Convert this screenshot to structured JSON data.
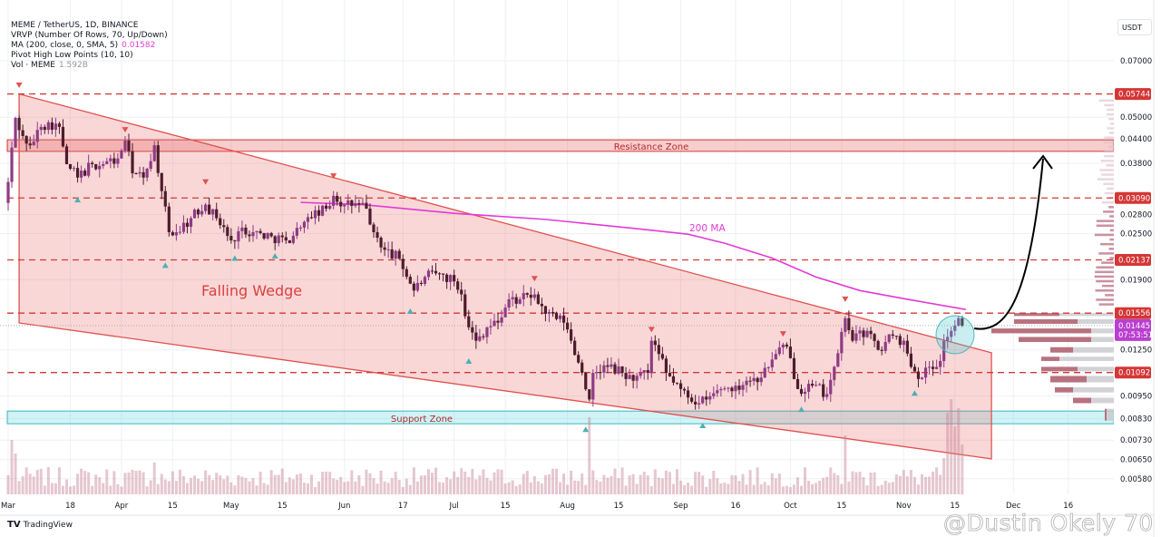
{
  "legend": {
    "symbol": "MEME / TetherUS, 1D, BINANCE",
    "vrvp": "VRVP (Number Of Rows, 70, Up/Down)",
    "ma": "MA (200, close, 0, SMA, 5)",
    "ma_value": "0.01582",
    "pivot": "Pivot High Low Points (10, 10)",
    "vol": "Vol · MEME",
    "vol_value": "1.592B"
  },
  "axis": {
    "currency": "USDT"
  },
  "footer": {
    "brand": "TradingView",
    "watermark": "@Dustin Okely 70"
  },
  "colors": {
    "up": "#8e3b84",
    "down": "#4d1c2c",
    "wedge": "#e0524f",
    "ma": "#e23ad6",
    "level": "#d23a3a",
    "support": "#3fb8bd",
    "current": "#b93fd0"
  },
  "chart_data": {
    "type": "candlestick",
    "title": "MEME / TetherUS, 1D, BINANCE",
    "scale": "log",
    "ylim": [
      0.0055,
      0.075
    ],
    "x_unit": "days since Mar 1",
    "x_ticks": [
      {
        "label": "Mar",
        "day": 0
      },
      {
        "label": "18",
        "day": 17
      },
      {
        "label": "Apr",
        "day": 31
      },
      {
        "label": "15",
        "day": 45
      },
      {
        "label": "May",
        "day": 61
      },
      {
        "label": "15",
        "day": 75
      },
      {
        "label": "Jun",
        "day": 92
      },
      {
        "label": "17",
        "day": 108
      },
      {
        "label": "Jul",
        "day": 122
      },
      {
        "label": "15",
        "day": 136
      },
      {
        "label": "Aug",
        "day": 153
      },
      {
        "label": "15",
        "day": 167
      },
      {
        "label": "Sep",
        "day": 184
      },
      {
        "label": "16",
        "day": 199
      },
      {
        "label": "Oct",
        "day": 214
      },
      {
        "label": "15",
        "day": 228
      },
      {
        "label": "Nov",
        "day": 245
      },
      {
        "label": "15",
        "day": 259
      },
      {
        "label": "Dec",
        "day": 275
      },
      {
        "label": "16",
        "day": 290
      }
    ],
    "y_ticks": [
      "0.07000",
      "0.05000",
      "0.04400",
      "0.03800",
      "0.02800",
      "0.02500",
      "0.01900",
      "0.01250",
      "0.00950",
      "0.00830",
      "0.00730",
      "0.00650",
      "0.00580"
    ],
    "close_path": [
      [
        0,
        0.034
      ],
      [
        2,
        0.0498
      ],
      [
        4,
        0.0447
      ],
      [
        6,
        0.0423
      ],
      [
        9,
        0.0472
      ],
      [
        11,
        0.0485
      ],
      [
        14,
        0.0472
      ],
      [
        16,
        0.0378
      ],
      [
        19,
        0.0349
      ],
      [
        23,
        0.0378
      ],
      [
        26,
        0.0378
      ],
      [
        30,
        0.0391
      ],
      [
        32,
        0.0435
      ],
      [
        34,
        0.0358
      ],
      [
        37,
        0.0349
      ],
      [
        40,
        0.0423
      ],
      [
        42,
        0.0322
      ],
      [
        44,
        0.0252
      ],
      [
        46,
        0.0252
      ],
      [
        50,
        0.0274
      ],
      [
        54,
        0.0297
      ],
      [
        57,
        0.0274
      ],
      [
        61,
        0.024
      ],
      [
        64,
        0.0259
      ],
      [
        67,
        0.0252
      ],
      [
        72,
        0.0246
      ],
      [
        76,
        0.024
      ],
      [
        80,
        0.0259
      ],
      [
        83,
        0.0274
      ],
      [
        87,
        0.029
      ],
      [
        89,
        0.0313
      ],
      [
        92,
        0.0297
      ],
      [
        96,
        0.0297
      ],
      [
        98,
        0.029
      ],
      [
        100,
        0.0252
      ],
      [
        103,
        0.0227
      ],
      [
        107,
        0.0215
      ],
      [
        111,
        0.0178
      ],
      [
        114,
        0.0193
      ],
      [
        118,
        0.0197
      ],
      [
        122,
        0.0188
      ],
      [
        124,
        0.0174
      ],
      [
        126,
        0.0143
      ],
      [
        128,
        0.0132
      ],
      [
        131,
        0.0143
      ],
      [
        134,
        0.0147
      ],
      [
        137,
        0.0169
      ],
      [
        140,
        0.0169
      ],
      [
        144,
        0.0174
      ],
      [
        147,
        0.0155
      ],
      [
        152,
        0.0147
      ],
      [
        154,
        0.0132
      ],
      [
        157,
        0.0109
      ],
      [
        159,
        0.0093
      ],
      [
        160,
        0.0109
      ],
      [
        164,
        0.0113
      ],
      [
        168,
        0.0109
      ],
      [
        171,
        0.0104
      ],
      [
        175,
        0.0109
      ],
      [
        176,
        0.0132
      ],
      [
        178,
        0.0122
      ],
      [
        180,
        0.0109
      ],
      [
        184,
        0.0099
      ],
      [
        189,
        0.0091
      ],
      [
        191,
        0.0093
      ],
      [
        195,
        0.0099
      ],
      [
        199,
        0.0101
      ],
      [
        202,
        0.0104
      ],
      [
        206,
        0.0106
      ],
      [
        210,
        0.0122
      ],
      [
        212,
        0.0129
      ],
      [
        214,
        0.0119
      ],
      [
        216,
        0.0099
      ],
      [
        220,
        0.0101
      ],
      [
        224,
        0.0096
      ],
      [
        226,
        0.0113
      ],
      [
        229,
        0.0151
      ],
      [
        231,
        0.0132
      ],
      [
        235,
        0.014
      ],
      [
        238,
        0.0125
      ],
      [
        242,
        0.0136
      ],
      [
        245,
        0.0132
      ],
      [
        247,
        0.0113
      ],
      [
        250,
        0.0106
      ],
      [
        252,
        0.0113
      ],
      [
        255,
        0.0117
      ],
      [
        256,
        0.0132
      ],
      [
        258,
        0.014
      ],
      [
        260,
        0.0151
      ],
      [
        261,
        0.01445
      ]
    ],
    "ma200": [
      [
        80,
        0.0301
      ],
      [
        97,
        0.0297
      ],
      [
        122,
        0.0282
      ],
      [
        147,
        0.0272
      ],
      [
        171,
        0.0258
      ],
      [
        186,
        0.0249
      ],
      [
        196,
        0.0236
      ],
      [
        209,
        0.0216
      ],
      [
        221,
        0.0193
      ],
      [
        233,
        0.0178
      ],
      [
        246,
        0.0169
      ],
      [
        262,
        0.0159
      ]
    ],
    "pivot_highs": [
      [
        3,
        0.0605
      ],
      [
        32,
        0.0464
      ],
      [
        54,
        0.034
      ],
      [
        89,
        0.0352
      ],
      [
        144,
        0.0191
      ],
      [
        176,
        0.0141
      ],
      [
        212,
        0.01375
      ],
      [
        229,
        0.0169
      ]
    ],
    "pivot_lows": [
      [
        19,
        0.0306
      ],
      [
        43,
        0.0207
      ],
      [
        62,
        0.0216
      ],
      [
        73,
        0.0219
      ],
      [
        110,
        0.01575
      ],
      [
        126,
        0.0117
      ],
      [
        158,
        0.00779
      ],
      [
        190,
        0.00797
      ],
      [
        217,
        0.00878
      ],
      [
        248,
        0.00967
      ]
    ],
    "levels": [
      {
        "price": 0.05744,
        "label": "0.05744"
      },
      {
        "price": 0.0309,
        "label": "0.03090"
      },
      {
        "price": 0.02137,
        "label": "0.02137"
      },
      {
        "price": 0.01556,
        "label": "0.01556"
      },
      {
        "price": 0.01092,
        "label": "0.01092"
      }
    ],
    "current_price": {
      "price": 0.01445,
      "label": "0.01445",
      "countdown": "07:53:51"
    },
    "wedge": {
      "upper": [
        [
          3,
          0.05744
        ],
        [
          269,
          0.01229
        ]
      ],
      "lower": [
        [
          3,
          0.01468
        ],
        [
          269,
          0.00653
        ]
      ]
    },
    "zones": [
      {
        "name": "Resistance Zone",
        "top": 0.0437,
        "bottom": 0.0408
      },
      {
        "name": "Support Zone",
        "top": 0.00868,
        "bottom": 0.00805
      }
    ],
    "annotations": {
      "pattern": "Falling Wedge",
      "ma_label": "200 MA"
    }
  }
}
